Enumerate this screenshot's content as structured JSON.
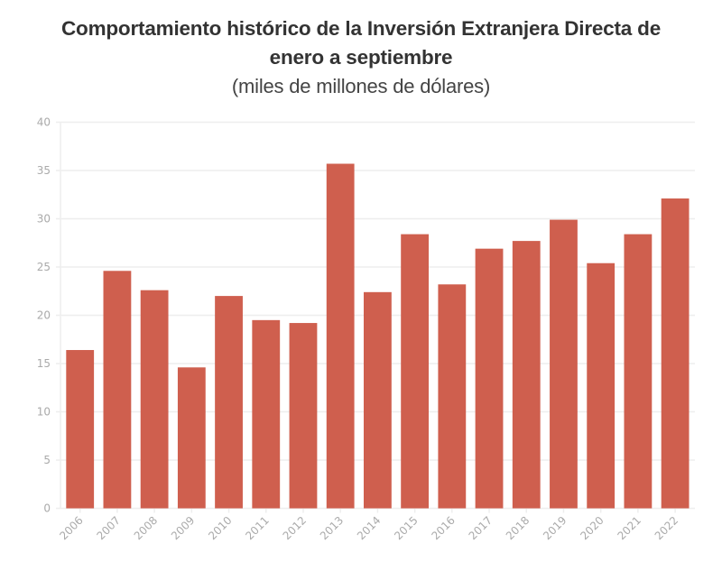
{
  "chart_data": {
    "type": "bar",
    "title": "Comportamiento histórico de la Inversión Extranjera Directa de enero a septiembre",
    "title_line1": "Comportamiento histórico de la Inversión Extranjera Directa de",
    "title_line2": "enero a septiembre",
    "subtitle": "(miles de millones de dólares)",
    "xlabel": "",
    "ylabel": "",
    "categories": [
      "2006",
      "2007",
      "2008",
      "2009",
      "2010",
      "2011",
      "2012",
      "2013",
      "2014",
      "2015",
      "2016",
      "2017",
      "2018",
      "2019",
      "2020",
      "2021",
      "2022"
    ],
    "values": [
      16.4,
      24.6,
      22.6,
      14.6,
      22.0,
      19.5,
      19.2,
      35.7,
      22.4,
      28.4,
      23.2,
      26.9,
      27.7,
      29.9,
      25.4,
      28.4,
      32.1
    ],
    "ylim": [
      0,
      40
    ],
    "yticks": [
      0,
      5,
      10,
      15,
      20,
      25,
      30,
      35,
      40
    ],
    "grid": true,
    "legend": "none",
    "bar_color": "#CF5F4E"
  }
}
